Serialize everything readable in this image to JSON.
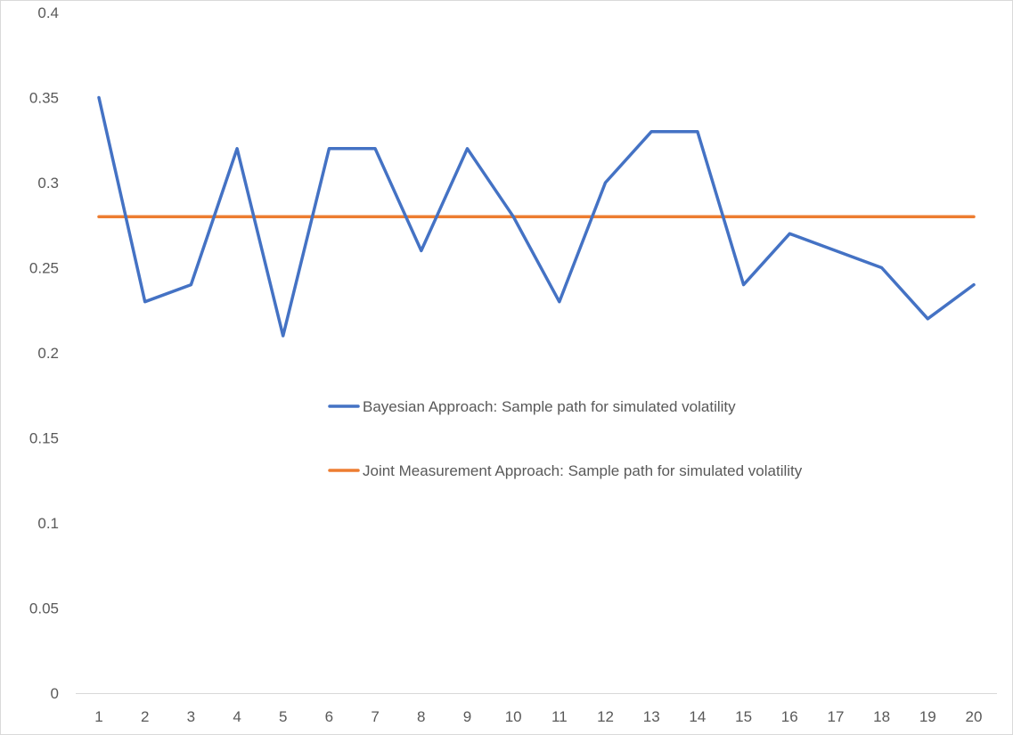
{
  "chart_data": {
    "type": "line",
    "title": "",
    "xlabel": "",
    "ylabel": "",
    "categories": [
      "1",
      "2",
      "3",
      "4",
      "5",
      "6",
      "7",
      "8",
      "9",
      "10",
      "11",
      "12",
      "13",
      "14",
      "15",
      "16",
      "17",
      "18",
      "19",
      "20"
    ],
    "ylim": [
      0,
      0.4
    ],
    "y_ticks": [
      "0",
      "0.05",
      "0.1",
      "0.15",
      "0.2",
      "0.25",
      "0.3",
      "0.35",
      "0.4"
    ],
    "y_tick_values": [
      0,
      0.05,
      0.1,
      0.15,
      0.2,
      0.25,
      0.3,
      0.35,
      0.4
    ],
    "grid": false,
    "legend_position": "center",
    "series": [
      {
        "name": "Bayesian Approach: Sample path for simulated volatility",
        "color": "#4472C4",
        "values": [
          0.35,
          0.23,
          0.24,
          0.32,
          0.21,
          0.32,
          0.32,
          0.26,
          0.32,
          0.28,
          0.23,
          0.3,
          0.33,
          0.33,
          0.24,
          0.27,
          0.26,
          0.25,
          0.22,
          0.24
        ]
      },
      {
        "name": "Joint Measurement Approach: Sample path for simulated volatility",
        "color": "#ED7D31",
        "values": [
          0.28,
          0.28,
          0.28,
          0.28,
          0.28,
          0.28,
          0.28,
          0.28,
          0.28,
          0.28,
          0.28,
          0.28,
          0.28,
          0.28,
          0.28,
          0.28,
          0.28,
          0.28,
          0.28,
          0.28
        ]
      }
    ]
  }
}
